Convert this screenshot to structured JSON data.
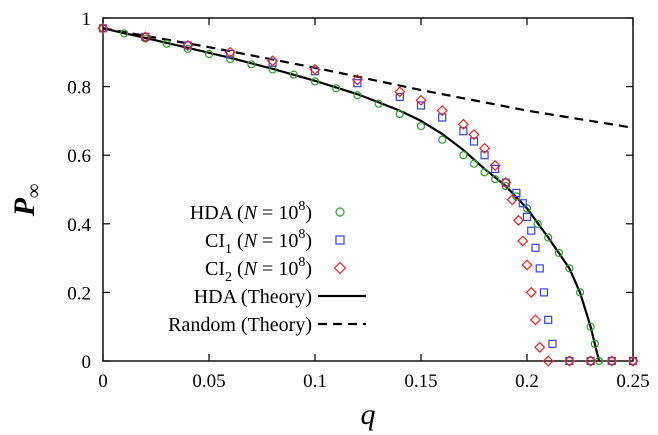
{
  "chart_data": {
    "type": "line",
    "xlabel": "q",
    "ylabel": "P",
    "ylabel_sub": "∞",
    "xlim": [
      0,
      0.25
    ],
    "ylim": [
      0,
      1
    ],
    "xticks": [
      0,
      0.05,
      0.1,
      0.15,
      0.2,
      0.25
    ],
    "xtick_labels": [
      "0",
      "0.05",
      "0.1",
      "0.15",
      "0.2",
      "0.25"
    ],
    "yticks": [
      0,
      0.2,
      0.4,
      0.6,
      0.8,
      1
    ],
    "ytick_labels": [
      "0",
      "0.2",
      "0.4",
      "0.6",
      "0.8",
      "1"
    ],
    "grid": false,
    "legend_position": "bottom-left",
    "colors": {
      "hda_sim": "#2ca02c",
      "ci1_sim": "#3344dd",
      "ci2_sim": "#ee2222",
      "theory": "#000000"
    },
    "series": [
      {
        "name": "HDA (N = 10^8)",
        "legend": {
          "main": "HDA (",
          "var": "N",
          "eq": " = 10",
          "sup": "8",
          "close": ")"
        },
        "marker": "circle",
        "color": "#2ca02c",
        "x": [
          0,
          0.01,
          0.02,
          0.03,
          0.04,
          0.05,
          0.06,
          0.07,
          0.08,
          0.09,
          0.1,
          0.11,
          0.12,
          0.13,
          0.14,
          0.15,
          0.16,
          0.17,
          0.175,
          0.18,
          0.185,
          0.19,
          0.195,
          0.2,
          0.205,
          0.21,
          0.215,
          0.22,
          0.225,
          0.23,
          0.232,
          0.234,
          0.24,
          0.25
        ],
        "y": [
          0.97,
          0.955,
          0.94,
          0.925,
          0.91,
          0.895,
          0.88,
          0.865,
          0.85,
          0.835,
          0.815,
          0.795,
          0.775,
          0.75,
          0.72,
          0.685,
          0.645,
          0.6,
          0.575,
          0.55,
          0.53,
          0.51,
          0.48,
          0.445,
          0.4,
          0.36,
          0.315,
          0.27,
          0.2,
          0.1,
          0.05,
          0,
          0,
          0
        ]
      },
      {
        "name": "CI1 (N = 10^8)",
        "legend": {
          "main": "CI",
          "sub": "1",
          "open": " (",
          "var": "N",
          "eq": " = 10",
          "sup": "8",
          "close": ")"
        },
        "marker": "square",
        "color": "#3344dd",
        "x": [
          0,
          0.02,
          0.04,
          0.06,
          0.08,
          0.1,
          0.12,
          0.14,
          0.15,
          0.16,
          0.17,
          0.175,
          0.18,
          0.185,
          0.19,
          0.195,
          0.198,
          0.2,
          0.202,
          0.204,
          0.206,
          0.208,
          0.21,
          0.212,
          0.22,
          0.23,
          0.24,
          0.25
        ],
        "y": [
          0.97,
          0.945,
          0.92,
          0.895,
          0.87,
          0.845,
          0.81,
          0.77,
          0.745,
          0.71,
          0.67,
          0.64,
          0.6,
          0.56,
          0.52,
          0.49,
          0.46,
          0.42,
          0.38,
          0.33,
          0.27,
          0.2,
          0.12,
          0.05,
          0,
          0,
          0,
          0
        ]
      },
      {
        "name": "CI2 (N = 10^8)",
        "legend": {
          "main": "CI",
          "sub": "2",
          "open": " (",
          "var": "N",
          "eq": " = 10",
          "sup": "8",
          "close": ")"
        },
        "marker": "diamond",
        "color": "#ee2222",
        "x": [
          0,
          0.02,
          0.04,
          0.06,
          0.08,
          0.1,
          0.12,
          0.14,
          0.15,
          0.16,
          0.17,
          0.175,
          0.18,
          0.185,
          0.19,
          0.193,
          0.196,
          0.198,
          0.2,
          0.202,
          0.204,
          0.206,
          0.21,
          0.22,
          0.23,
          0.24,
          0.25
        ],
        "y": [
          0.97,
          0.945,
          0.92,
          0.9,
          0.875,
          0.85,
          0.82,
          0.785,
          0.76,
          0.73,
          0.69,
          0.66,
          0.62,
          0.57,
          0.52,
          0.47,
          0.41,
          0.35,
          0.28,
          0.2,
          0.12,
          0.04,
          0,
          0,
          0,
          0,
          0
        ]
      },
      {
        "name": "HDA (Theory)",
        "legend": {
          "main": "HDA (Theory)"
        },
        "line": "solid",
        "color": "#000000",
        "x": [
          0,
          0.02,
          0.04,
          0.06,
          0.08,
          0.1,
          0.12,
          0.14,
          0.15,
          0.16,
          0.17,
          0.18,
          0.19,
          0.2,
          0.21,
          0.22,
          0.225,
          0.23,
          0.232,
          0.234
        ],
        "y": [
          0.97,
          0.942,
          0.913,
          0.884,
          0.852,
          0.817,
          0.778,
          0.73,
          0.7,
          0.662,
          0.615,
          0.56,
          0.51,
          0.445,
          0.36,
          0.27,
          0.2,
          0.1,
          0.05,
          0
        ]
      },
      {
        "name": "Random (Theory)",
        "legend": {
          "main": "Random (Theory)"
        },
        "line": "dashed",
        "color": "#000000",
        "x": [
          0,
          0.05,
          0.1,
          0.15,
          0.2,
          0.25
        ],
        "y": [
          0.97,
          0.915,
          0.855,
          0.79,
          0.73,
          0.68
        ]
      }
    ]
  }
}
